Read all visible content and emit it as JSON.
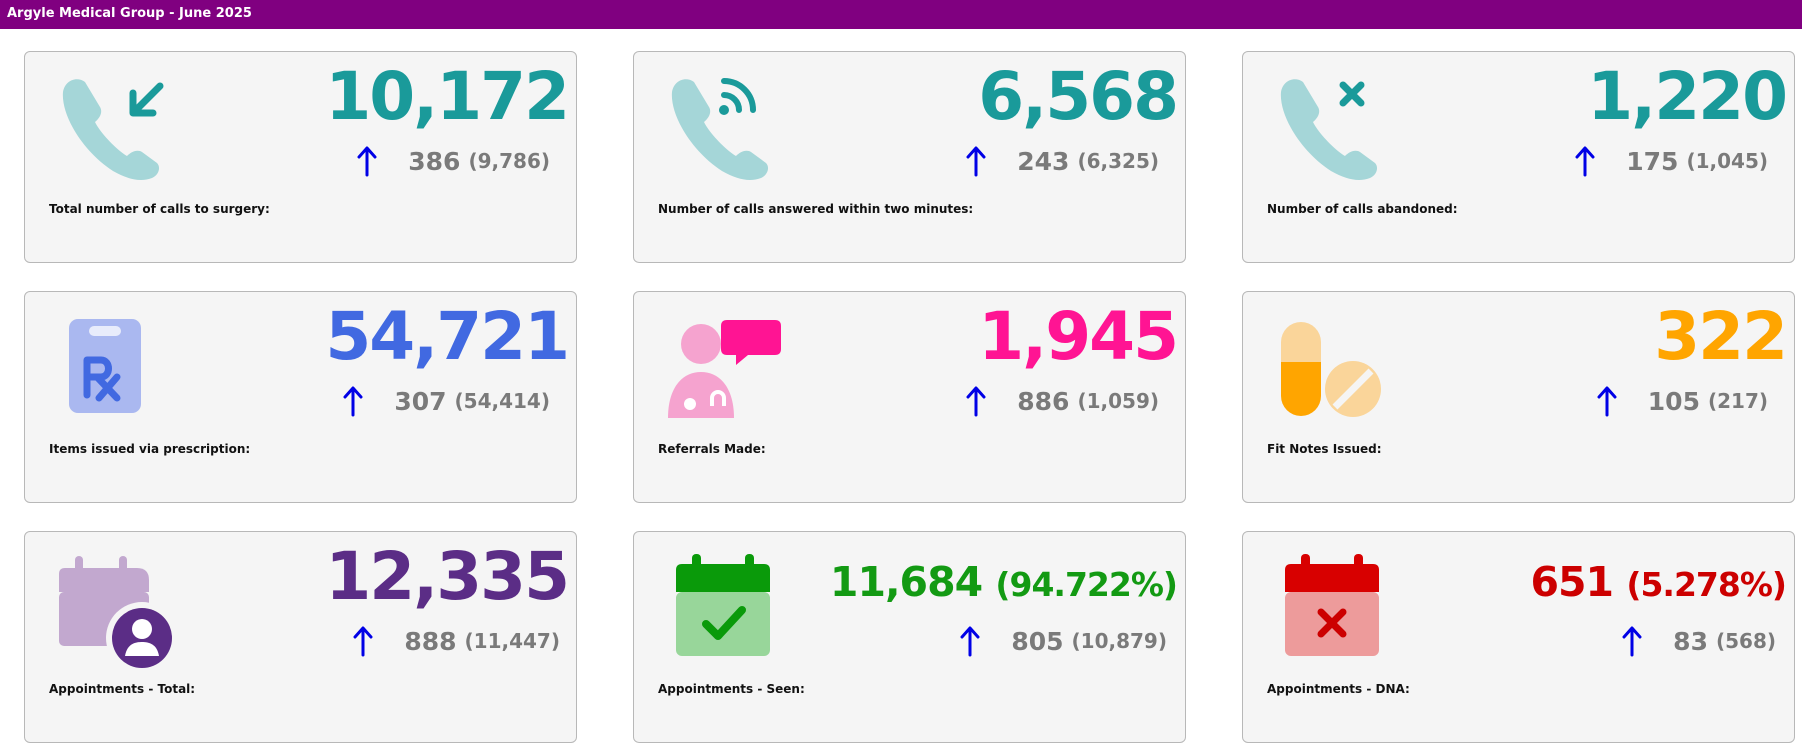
{
  "header": {
    "title": "Argyle Medical Group - June 2025"
  },
  "cards": [
    {
      "icon": "phone-incoming-icon",
      "value": "10,172",
      "change": "386",
      "previous": "(9,786)",
      "label": "Total number of calls to surgery:",
      "color": "#1a9a9a"
    },
    {
      "icon": "phone-signal-icon",
      "value": "6,568",
      "change": "243",
      "previous": "(6,325)",
      "label": "Number of calls answered within two minutes:",
      "color": "#1a9a9a"
    },
    {
      "icon": "phone-cancel-icon",
      "value": "1,220",
      "change": "175",
      "previous": "(1,045)",
      "label": "Number of calls abandoned:",
      "color": "#1a9a9a"
    },
    {
      "icon": "prescription-clipboard-icon",
      "value": "54,721",
      "change": "307",
      "previous": "(54,414)",
      "label": "Items issued via prescription:",
      "color": "#4169e1"
    },
    {
      "icon": "doctor-referral-icon",
      "value": "1,945",
      "change": "886",
      "previous": "(1,059)",
      "label": "Referrals Made:",
      "color": "#ff1493"
    },
    {
      "icon": "pills-icon",
      "value": "322",
      "change": "105",
      "previous": "(217)",
      "label": "Fit Notes Issued:",
      "color": "#ffa500"
    },
    {
      "icon": "calendar-user-icon",
      "value": "12,335",
      "change": "888",
      "previous": "(11,447)",
      "label": "Appointments - Total:",
      "color": "#5b2d86"
    },
    {
      "icon": "calendar-check-icon",
      "value": "11,684",
      "percent": "(94.722%)",
      "change": "805",
      "previous": "(10,879)",
      "label": "Appointments - Seen:",
      "color": "#139a13"
    },
    {
      "icon": "calendar-x-icon",
      "value": "651",
      "percent": "(5.278%)",
      "change": "83",
      "previous": "(568)",
      "label": "Appointments - DNA:",
      "color": "#cc0000"
    }
  ],
  "colors": {
    "header_bg": "#800080",
    "arrow": "#0000e6",
    "muted_text": "#7a7a7a",
    "card_bg": "#f5f5f5"
  }
}
